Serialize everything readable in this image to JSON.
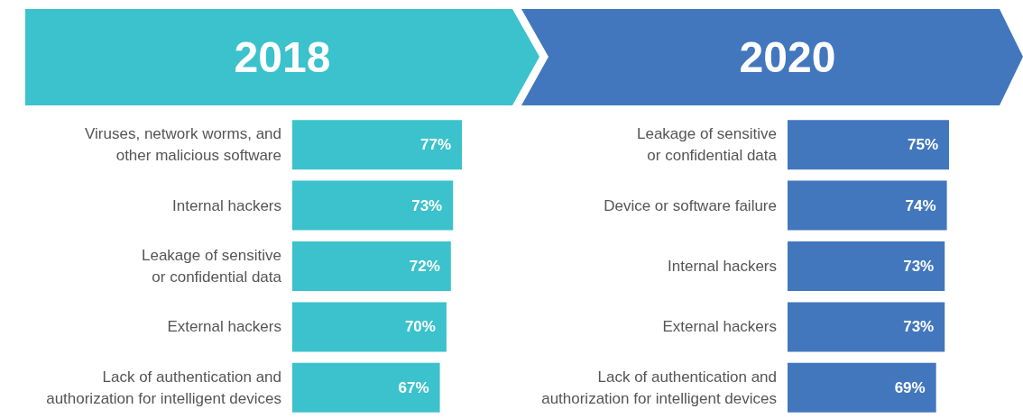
{
  "chart_data": [
    {
      "type": "bar",
      "orientation": "horizontal",
      "title": "2018",
      "categories": [
        "Viruses, network worms, and other malicious software",
        "Internal hackers",
        "Leakage of sensitive or confidential data",
        "External hackers",
        "Lack of authentication and authorization for intelligent devices"
      ],
      "values": [
        77,
        73,
        72,
        70,
        67
      ],
      "value_labels": [
        "77%",
        "73%",
        "72%",
        "70%",
        "67%"
      ],
      "color": "#3bc2cc",
      "tick_labels": "y"
    },
    {
      "type": "bar",
      "orientation": "horizontal",
      "title": "2020",
      "categories": [
        "Leakage of sensitive or confidential data",
        "Device or software failure",
        "Internal hackers",
        "External hackers",
        "Lack of authentication and authorization for intelligent devices"
      ],
      "values": [
        75,
        74,
        73,
        73,
        69
      ],
      "value_labels": [
        "75%",
        "74%",
        "73%",
        "73%",
        "69%"
      ],
      "color": "#4277be",
      "tick_labels": "y"
    }
  ]
}
